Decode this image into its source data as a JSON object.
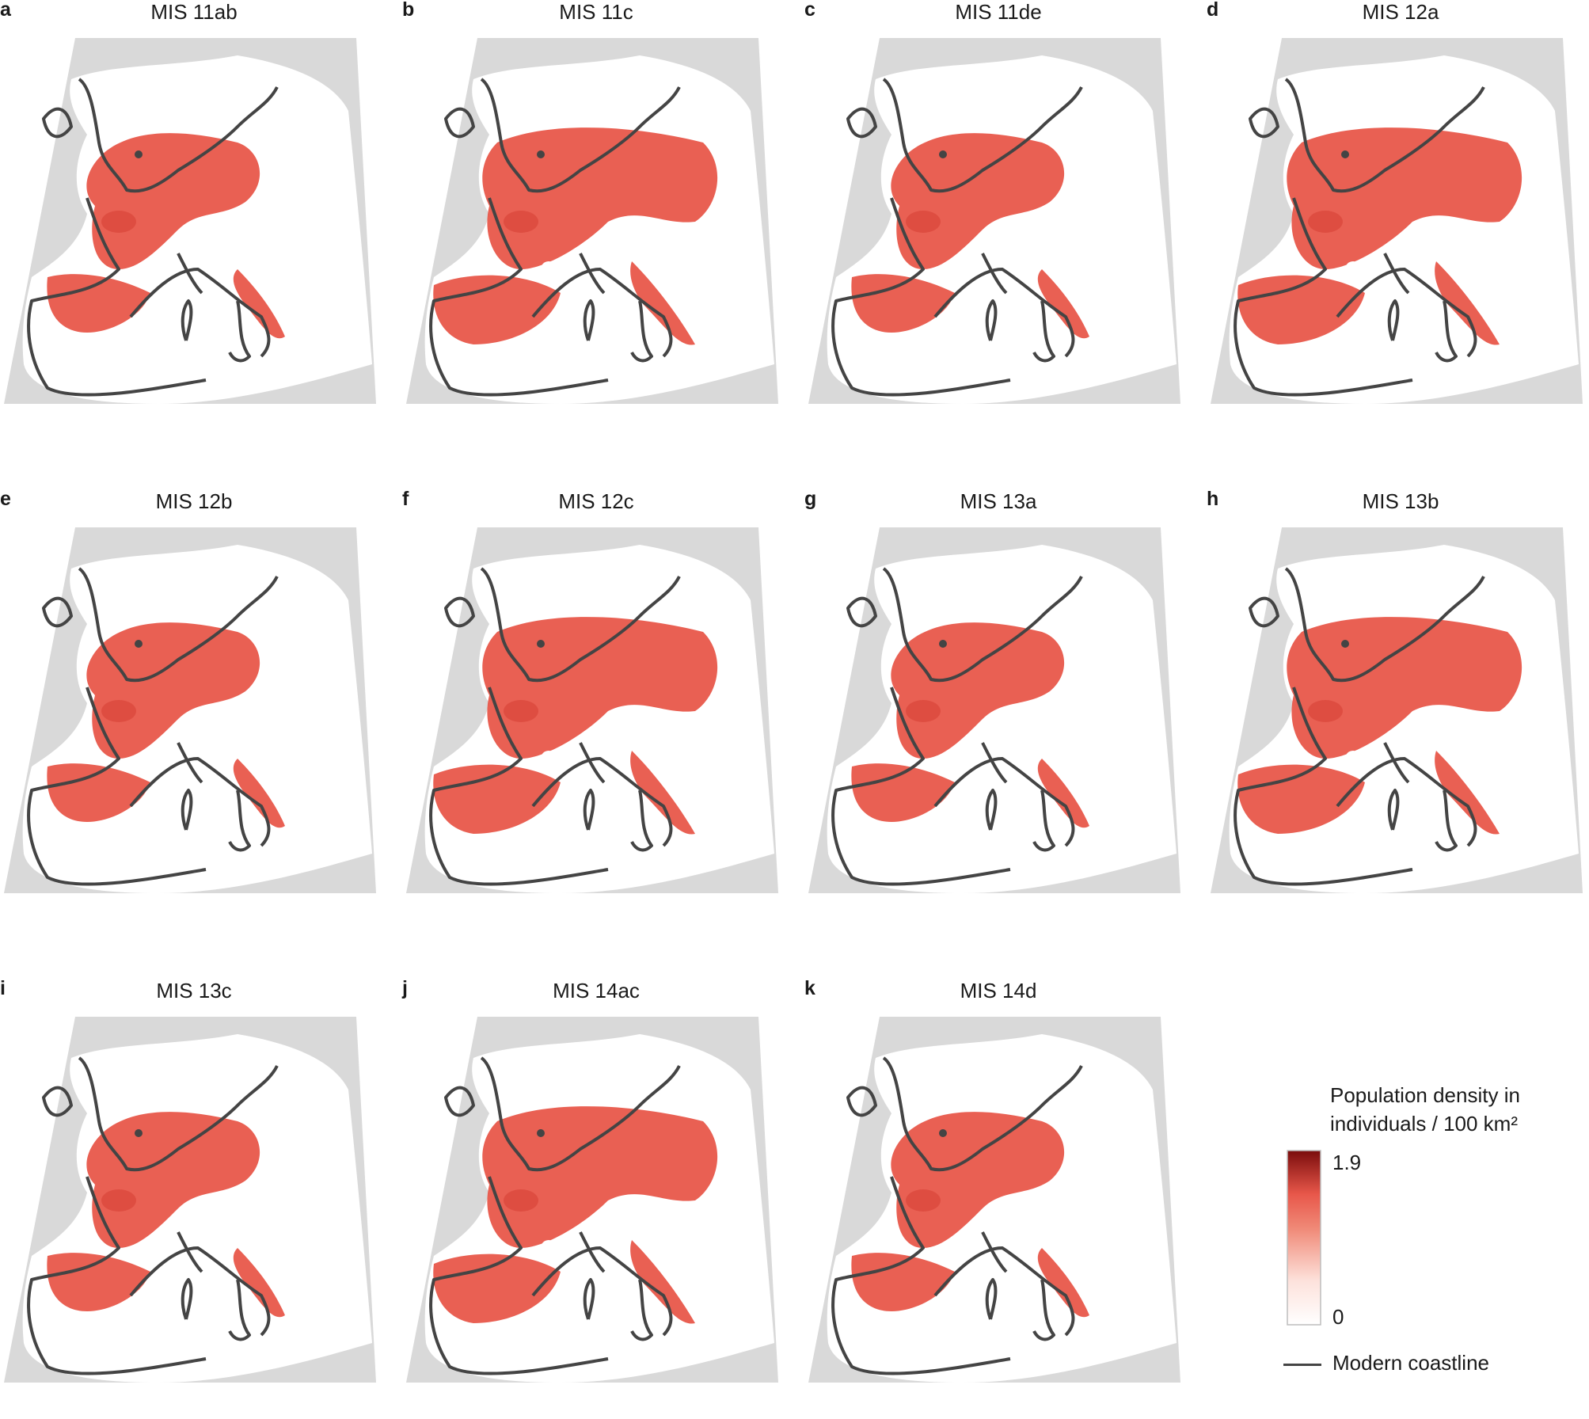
{
  "panels": [
    {
      "letter": "a",
      "title": "MIS 11ab"
    },
    {
      "letter": "b",
      "title": "MIS 11c"
    },
    {
      "letter": "c",
      "title": "MIS 11de"
    },
    {
      "letter": "d",
      "title": "MIS 12a"
    },
    {
      "letter": "e",
      "title": "MIS 12b"
    },
    {
      "letter": "f",
      "title": "MIS 12c"
    },
    {
      "letter": "g",
      "title": "MIS 13a"
    },
    {
      "letter": "h",
      "title": "MIS 13b"
    },
    {
      "letter": "i",
      "title": "MIS 13c"
    },
    {
      "letter": "j",
      "title": "MIS 14ac"
    },
    {
      "letter": "k",
      "title": "MIS 14d"
    }
  ],
  "legend": {
    "title_line1": "Population density in",
    "title_line2": "individuals / 100 km²",
    "max_label": "1.9",
    "min_label": "0",
    "scale_max": 1.9,
    "scale_min": 0,
    "coastline_label": "Modern coastline"
  },
  "colors": {
    "ocean": "#d9d9d9",
    "land_uninhabited": "#ffffff",
    "density_high": "#7a0c0c",
    "density_mid": "#e8574a",
    "density_low": "#ffffff",
    "coastline": "#444444"
  }
}
